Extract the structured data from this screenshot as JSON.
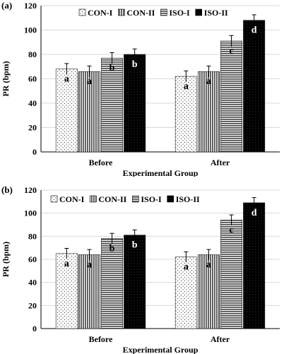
{
  "chart_data": [
    {
      "type": "bar",
      "panel_label": "(a)",
      "categories": [
        "Before",
        "After"
      ],
      "xlabel": "Experimental Group",
      "ylabel": "PR (bpm)",
      "ylim": [
        0,
        120
      ],
      "yticks": [
        0,
        20,
        40,
        60,
        80,
        100,
        120
      ],
      "legend_position": "top-center",
      "series": [
        {
          "name": "CON-I",
          "values": [
            68,
            62
          ],
          "errors": [
            4.5,
            4.5
          ],
          "letters": [
            "a",
            "a"
          ],
          "pattern": "dots"
        },
        {
          "name": "CON-II",
          "values": [
            66,
            66
          ],
          "errors": [
            4.5,
            4.5
          ],
          "letters": [
            "a",
            "a"
          ],
          "pattern": "vlines"
        },
        {
          "name": "ISO-I",
          "values": [
            77,
            91
          ],
          "errors": [
            4.5,
            4.5
          ],
          "letters": [
            "b",
            "c"
          ],
          "pattern": "hlines"
        },
        {
          "name": "ISO-II",
          "values": [
            80,
            108
          ],
          "errors": [
            4.5,
            4.5
          ],
          "letters": [
            "b",
            "d"
          ],
          "pattern": "black"
        }
      ]
    },
    {
      "type": "bar",
      "panel_label": "(b)",
      "categories": [
        "Before",
        "After"
      ],
      "xlabel": "Experimental Group",
      "ylabel": "PR (bpm)",
      "ylim": [
        0,
        120
      ],
      "yticks": [
        0,
        20,
        40,
        60,
        80,
        100,
        120
      ],
      "legend_position": "top-center",
      "series": [
        {
          "name": "CON-I",
          "values": [
            65,
            62
          ],
          "errors": [
            4.5,
            4.5
          ],
          "letters": [
            "a",
            "a"
          ],
          "pattern": "dots"
        },
        {
          "name": "CON-II",
          "values": [
            64,
            64
          ],
          "errors": [
            4.5,
            4.5
          ],
          "letters": [
            "a",
            "a"
          ],
          "pattern": "vlines"
        },
        {
          "name": "ISO-I",
          "values": [
            78,
            94
          ],
          "errors": [
            4.5,
            4.5
          ],
          "letters": [
            "b",
            "c"
          ],
          "pattern": "hlines"
        },
        {
          "name": "ISO-II",
          "values": [
            81,
            109
          ],
          "errors": [
            4.5,
            4.5
          ],
          "letters": [
            "b",
            "d"
          ],
          "pattern": "black"
        }
      ]
    }
  ]
}
